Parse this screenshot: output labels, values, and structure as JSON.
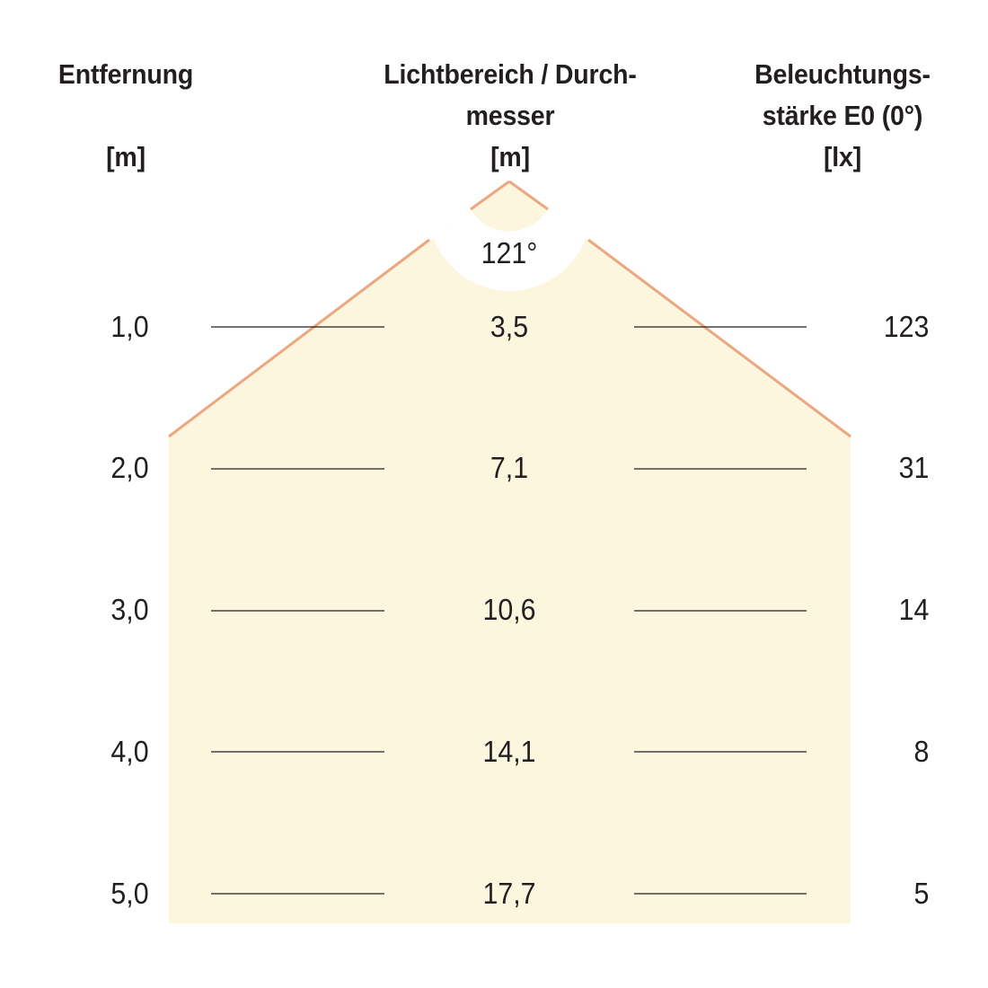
{
  "headers": {
    "distance": {
      "line1": "Entfernung",
      "unit": "[m]"
    },
    "diameter": {
      "line1": "Lichtbereich / Durch-",
      "line2": "messer",
      "unit": "[m]"
    },
    "illuminance": {
      "line1": "Beleuchtungs-",
      "line2": "stärke E0 (0°)",
      "unit": "[lx]"
    }
  },
  "beam_angle": "121°",
  "rows": [
    {
      "distance": "1,0",
      "diameter": "3,5",
      "illuminance": "123"
    },
    {
      "distance": "2,0",
      "diameter": "7,1",
      "illuminance": "31"
    },
    {
      "distance": "3,0",
      "diameter": "10,6",
      "illuminance": "14"
    },
    {
      "distance": "4,0",
      "diameter": "14,1",
      "illuminance": "8"
    },
    {
      "distance": "5,0",
      "diameter": "17,7",
      "illuminance": "5"
    }
  ],
  "colors": {
    "beam_fill": "#fdf6df",
    "beam_edge": "#eba77f",
    "text": "#231f20",
    "rule": "#231f20"
  }
}
